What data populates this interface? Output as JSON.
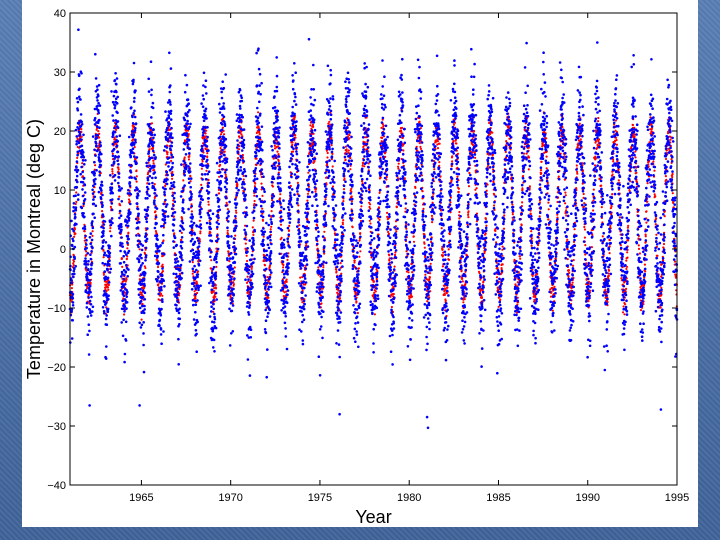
{
  "chart_data": {
    "type": "scatter",
    "title": "",
    "xlabel": "Year",
    "ylabel": "Temperature in Montreal (deg C)",
    "xlim": [
      1961,
      1995
    ],
    "ylim": [
      -40,
      40
    ],
    "xticks": [
      1965,
      1970,
      1975,
      1980,
      1985,
      1990,
      1995
    ],
    "yticks": [
      -40,
      -30,
      -20,
      -10,
      0,
      10,
      20,
      30,
      40
    ],
    "grid": false,
    "series": [
      {
        "color": "#0000ff",
        "description_values": "daily temperature observations, ~12000 points, annual cycle",
        "seasonal_model": {
          "mean": 6.5,
          "amplitude": 14.5,
          "peak_day_of_year": 200,
          "noise_sd": 5.0
        },
        "extremes": [
          {
            "x": 1963.5,
            "y": 28.5
          },
          {
            "x": 1964.5,
            "y": 28.5
          },
          {
            "x": 1975.6,
            "y": 30.3
          },
          {
            "x": 1981.05,
            "y": -30.3
          },
          {
            "x": 1981.0,
            "y": -28.5
          },
          {
            "x": 1976.1,
            "y": -28.0
          },
          {
            "x": 1962.1,
            "y": -26.5
          },
          {
            "x": 1964.9,
            "y": -26.5
          },
          {
            "x": 1994.1,
            "y": -27.2
          },
          {
            "x": 1987.6,
            "y": 28.2
          },
          {
            "x": 1988.6,
            "y": 28.3
          },
          {
            "x": 1991.6,
            "y": 28.7
          }
        ]
      },
      {
        "color": "#ff0000",
        "description_values": "smoothed seasonal curve, winter minima near -10 to -18, summer maxima near 19 to 22",
        "seasonal_model": {
          "mean": 6.0,
          "amplitude": 14.0,
          "peak_day_of_year": 200,
          "noise_sd": 1.5
        }
      }
    ]
  }
}
